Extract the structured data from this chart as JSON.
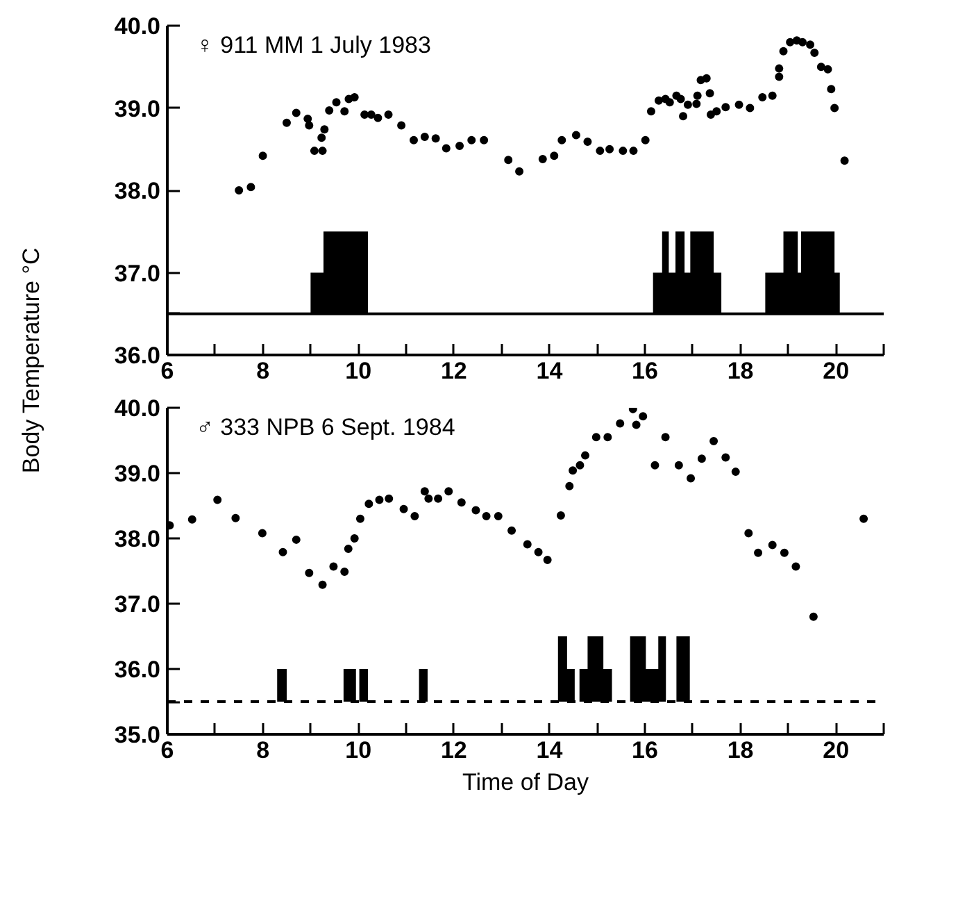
{
  "chart_data": [
    {
      "type": "scatter",
      "ylabel": "Body Temperature °C",
      "annotations": [
        "♀ 911 MM 1 July 1983"
      ],
      "xlim": [
        6,
        21
      ],
      "ylim": [
        36,
        40
      ],
      "xticks": [
        6,
        {
          "value": 7,
          "label": null
        },
        8,
        {
          "value": 9,
          "label": null
        },
        10,
        {
          "value": 11,
          "label": null
        },
        12,
        {
          "value": 13,
          "label": null
        },
        14,
        {
          "value": 15,
          "label": null
        },
        16,
        {
          "value": 17,
          "label": null
        },
        18,
        {
          "value": 19,
          "label": null
        },
        20,
        {
          "value": 21,
          "label": null
        }
      ],
      "yticks": [
        {
          "value": 36,
          "label": "36.0"
        },
        {
          "value": 36.5,
          "label": null
        },
        {
          "value": 37,
          "label": "37.0"
        },
        {
          "value": 38,
          "label": "38.0"
        },
        {
          "value": 39,
          "label": "39.0"
        },
        {
          "value": 40,
          "label": "40.0"
        }
      ],
      "ref_lines": [
        {
          "axis": "y",
          "value": 36.5,
          "color": "#000000",
          "line_style": "solid"
        }
      ],
      "series": [
        {
          "color": "#000000",
          "marker": "circle",
          "x": [
            7.5,
            7.75,
            8.0,
            8.5,
            8.7,
            8.94,
            8.97,
            9.08,
            9.25,
            9.23,
            9.29,
            9.39,
            9.54,
            9.71,
            9.8,
            9.92,
            10.13,
            10.27,
            10.41,
            10.63,
            10.9,
            11.16,
            11.39,
            11.62,
            11.84,
            12.12,
            12.37,
            12.63,
            13.14,
            13.37,
            13.86,
            14.1,
            14.26,
            14.56,
            14.8,
            15.06,
            15.26,
            15.54,
            15.76,
            16.01,
            16.13,
            16.29,
            16.43,
            16.52,
            16.66,
            16.75,
            16.8,
            16.9,
            17.08,
            17.1,
            17.17,
            17.29,
            17.36,
            17.38,
            17.5,
            17.69,
            17.97,
            18.2,
            18.46,
            18.67,
            18.81,
            18.81,
            18.9,
            19.04,
            19.18,
            19.3,
            19.46,
            19.55,
            19.69,
            19.83,
            19.9,
            19.97,
            20.18
          ],
          "values": [
            38.0,
            38.04,
            38.42,
            38.82,
            38.94,
            38.87,
            38.79,
            38.48,
            38.48,
            38.64,
            38.74,
            38.97,
            39.07,
            38.96,
            39.11,
            39.13,
            38.92,
            38.92,
            38.88,
            38.92,
            38.79,
            38.61,
            38.65,
            38.63,
            38.51,
            38.54,
            38.61,
            38.61,
            38.37,
            38.23,
            38.38,
            38.42,
            38.61,
            38.67,
            38.59,
            38.48,
            38.5,
            38.48,
            38.48,
            38.61,
            38.96,
            39.09,
            39.11,
            39.07,
            39.15,
            39.11,
            38.9,
            39.04,
            39.05,
            39.15,
            39.34,
            39.36,
            39.18,
            38.92,
            38.96,
            39.01,
            39.04,
            39.0,
            39.13,
            39.15,
            39.38,
            39.48,
            39.69,
            39.8,
            39.82,
            39.8,
            39.77,
            39.67,
            39.5,
            39.47,
            39.23,
            39.0,
            38.36
          ]
        },
        {
          "type": "area",
          "color": "#000000",
          "x": [
            9.0,
            9.0,
            9.27,
            9.27,
            10.2,
            10.2,
            16.17,
            16.17,
            16.36,
            16.36,
            16.5,
            16.5,
            16.64,
            16.64,
            16.83,
            16.83,
            16.95,
            16.95,
            17.44,
            17.44,
            17.6,
            17.6,
            18.52,
            18.52,
            18.9,
            18.9,
            19.2,
            19.2,
            19.27,
            19.27,
            19.97,
            19.97,
            20.08,
            20.08
          ],
          "values": [
            36.5,
            37.0,
            37.0,
            37.5,
            37.5,
            36.5,
            36.5,
            37.0,
            37.0,
            37.5,
            37.5,
            37.0,
            37.0,
            37.5,
            37.5,
            37.0,
            37.0,
            37.5,
            37.5,
            37.0,
            37.0,
            36.5,
            36.5,
            37.0,
            37.0,
            37.5,
            37.5,
            37.0,
            37.0,
            37.5,
            37.5,
            37.0,
            37.0,
            36.5
          ]
        }
      ]
    },
    {
      "type": "scatter",
      "xlabel": "Time of Day",
      "annotations": [
        "♂ 333 NPB 6 Sept. 1984"
      ],
      "xlim": [
        6,
        21
      ],
      "ylim": [
        35,
        40
      ],
      "xticks": [
        6,
        {
          "value": 7,
          "label": null
        },
        8,
        {
          "value": 9,
          "label": null
        },
        10,
        {
          "value": 11,
          "label": null
        },
        12,
        {
          "value": 13,
          "label": null
        },
        14,
        {
          "value": 15,
          "label": null
        },
        16,
        {
          "value": 17,
          "label": null
        },
        18,
        {
          "value": 19,
          "label": null
        },
        20,
        {
          "value": 21,
          "label": null
        }
      ],
      "yticks": [
        {
          "value": 35,
          "label": "35.0"
        },
        {
          "value": 35.5,
          "label": null
        },
        {
          "value": 36,
          "label": "36.0"
        },
        {
          "value": 37,
          "label": "37.0"
        },
        {
          "value": 38,
          "label": "38.0"
        },
        {
          "value": 39,
          "label": "39.0"
        },
        {
          "value": 40,
          "label": "40.0"
        }
      ],
      "ref_lines": [
        {
          "axis": "y",
          "value": 35.5,
          "color": "#000000",
          "line_style": "dashed"
        }
      ],
      "series": [
        {
          "color": "#000000",
          "marker": "circle",
          "x": [
            6.05,
            6.52,
            7.05,
            7.43,
            7.99,
            8.42,
            8.7,
            8.97,
            9.25,
            9.48,
            9.71,
            9.79,
            9.92,
            10.04,
            10.22,
            10.44,
            10.64,
            10.95,
            11.18,
            11.39,
            11.47,
            11.67,
            11.89,
            12.16,
            12.46,
            12.68,
            12.93,
            13.21,
            13.54,
            13.77,
            13.96,
            14.24,
            14.42,
            14.49,
            14.64,
            14.75,
            14.98,
            15.22,
            15.48,
            15.75,
            15.82,
            15.96,
            16.21,
            16.43,
            16.71,
            16.96,
            17.19,
            17.44,
            17.69,
            17.9,
            18.17,
            18.37,
            18.67,
            18.92,
            19.16,
            19.53,
            20.58
          ],
          "values": [
            38.2,
            38.29,
            38.59,
            38.31,
            38.08,
            37.79,
            37.98,
            37.47,
            37.29,
            37.57,
            37.49,
            37.84,
            38.0,
            38.3,
            38.53,
            38.59,
            38.61,
            38.45,
            38.34,
            38.72,
            38.61,
            38.61,
            38.72,
            38.55,
            38.43,
            38.34,
            38.34,
            38.12,
            37.91,
            37.79,
            37.67,
            38.35,
            38.8,
            39.04,
            39.12,
            39.27,
            39.55,
            39.55,
            39.76,
            39.98,
            39.74,
            39.87,
            39.12,
            39.55,
            39.12,
            38.92,
            39.22,
            39.49,
            39.24,
            39.02,
            38.08,
            37.78,
            37.9,
            37.78,
            37.57,
            36.8,
            38.3
          ]
        },
        {
          "type": "area",
          "color": "#000000",
          "x": [
            8.3,
            8.3,
            8.5,
            8.5,
            9.69,
            9.69,
            9.95,
            9.95,
            10.02,
            10.02,
            10.2,
            10.2,
            11.27,
            11.27,
            11.45,
            11.45,
            14.18,
            14.18,
            14.37,
            14.37,
            14.53,
            14.53,
            14.63,
            14.63,
            14.8,
            14.8,
            15.13,
            15.13,
            15.31,
            15.31,
            15.69,
            15.69,
            16.02,
            16.02,
            16.28,
            16.28,
            16.44,
            16.44,
            16.66,
            16.66,
            16.94,
            16.94
          ],
          "values": [
            35.5,
            36.0,
            36.0,
            35.5,
            35.5,
            36.0,
            36.0,
            35.5,
            35.5,
            36.0,
            36.0,
            35.5,
            35.5,
            36.0,
            36.0,
            35.5,
            35.5,
            36.5,
            36.5,
            36.0,
            36.0,
            35.5,
            35.5,
            36.0,
            36.0,
            36.5,
            36.5,
            36.0,
            36.0,
            35.5,
            35.5,
            36.5,
            36.5,
            36.0,
            36.0,
            36.5,
            36.5,
            35.5,
            35.5,
            36.5,
            36.5,
            35.5
          ]
        }
      ]
    }
  ]
}
